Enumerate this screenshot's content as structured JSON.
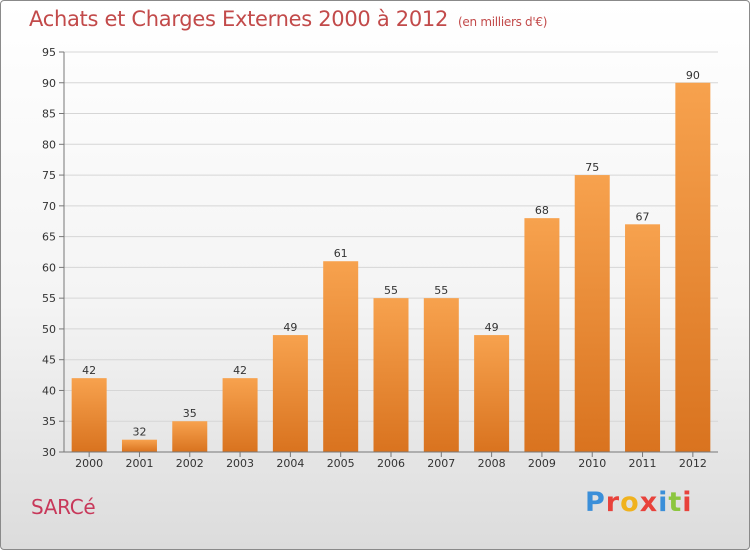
{
  "chart_data": {
    "type": "bar",
    "title": "Achats et Charges Externes 2000 à 2012",
    "subtitle": "(en milliers d'€)",
    "categories": [
      "2000",
      "2001",
      "2002",
      "2003",
      "2004",
      "2005",
      "2006",
      "2007",
      "2008",
      "2009",
      "2010",
      "2011",
      "2012"
    ],
    "values": [
      42,
      32,
      35,
      42,
      49,
      61,
      55,
      55,
      49,
      68,
      75,
      67,
      90
    ],
    "ylim": [
      30,
      95
    ],
    "yticks": [
      30,
      35,
      40,
      45,
      50,
      55,
      60,
      65,
      70,
      75,
      80,
      85,
      90,
      95
    ],
    "grid": true,
    "bar_color_top": "#f7a24e",
    "bar_color_bottom": "#d9731f"
  },
  "footer": {
    "commune": "SARCé",
    "logo_text": "Proxiti",
    "logo_colors": [
      "#3b8fd9",
      "#e8423b",
      "#f0b21e",
      "#e8423b",
      "#3b8fd9",
      "#8cc63f",
      "#e8423b"
    ]
  }
}
